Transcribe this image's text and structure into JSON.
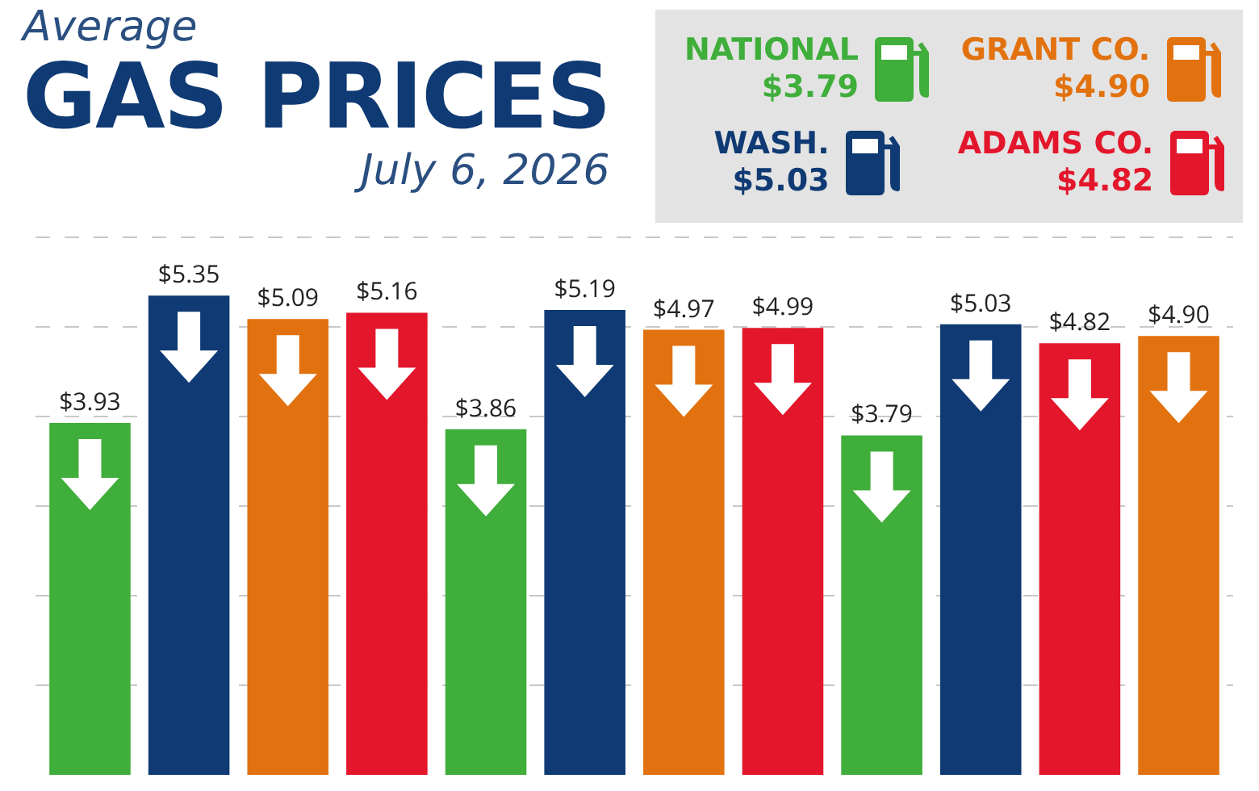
{
  "chart_data": {
    "type": "bar",
    "title": "Average GAS PRICES",
    "subtitle": "July 6, 2026",
    "categories": [
      null,
      null,
      null,
      null,
      null,
      null,
      null,
      null,
      null,
      null,
      null,
      null
    ],
    "values": [
      3.93,
      5.35,
      5.09,
      5.16,
      3.86,
      5.19,
      4.97,
      4.99,
      3.79,
      5.03,
      4.82,
      4.9
    ],
    "colors": [
      "#3fae3a",
      "#0f3a73",
      "#e2720f",
      "#e3162b",
      "#3fae3a",
      "#0f3a73",
      "#e2720f",
      "#e3162b",
      "#3fae3a",
      "#0f3a73",
      "#e3162b",
      "#e2720f"
    ],
    "value_labels": [
      "$3.93",
      "$5.35",
      "$5.09",
      "$5.16",
      "$3.86",
      "$5.19",
      "$4.97",
      "$4.99",
      "$3.79",
      "$5.03",
      "$4.82",
      "$4.90"
    ],
    "annotations": [
      "NATIONAL",
      "$3.79",
      "WASH.",
      "$5.03",
      "GRANT CO.",
      "$4.90",
      "ADAMS CO.",
      "$4.82"
    ],
    "ylim": [
      0,
      6.02
    ],
    "yticks": [
      {
        "value": 1,
        "label": null
      },
      {
        "value": 2,
        "label": null
      },
      {
        "value": 3,
        "label": null
      },
      {
        "value": 4,
        "label": null
      },
      {
        "value": 5,
        "label": null
      },
      {
        "value": 6,
        "label": null
      }
    ],
    "grid": "y"
  }
}
